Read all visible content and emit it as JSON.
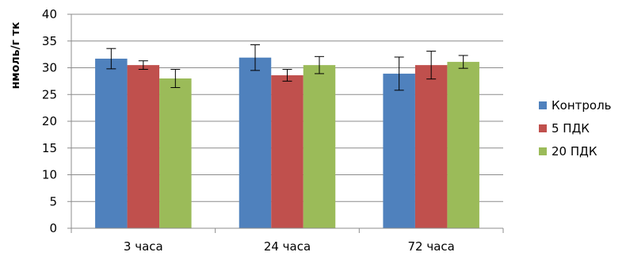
{
  "chart_data": {
    "type": "bar",
    "ylabel": "нмоль/г тк",
    "xlabel": "",
    "title": "",
    "ylim": [
      0,
      40
    ],
    "yticks": [
      0,
      5,
      10,
      15,
      20,
      25,
      30,
      35,
      40
    ],
    "grid": true,
    "legend_position": "right",
    "categories": [
      "3 часа",
      "24 часа",
      "72 часа"
    ],
    "series": [
      {
        "name": "Контроль",
        "color": "#4f81bd",
        "values": [
          31.7,
          31.9,
          28.9
        ],
        "errors": [
          1.9,
          2.4,
          3.1
        ]
      },
      {
        "name": "5 ПДК",
        "color": "#c0504d",
        "values": [
          30.5,
          28.6,
          30.5
        ],
        "errors": [
          0.8,
          1.1,
          2.6
        ]
      },
      {
        "name": "20 ПДК",
        "color": "#9bbb59",
        "values": [
          28.0,
          30.5,
          31.1
        ],
        "errors": [
          1.7,
          1.6,
          1.2
        ]
      }
    ]
  }
}
